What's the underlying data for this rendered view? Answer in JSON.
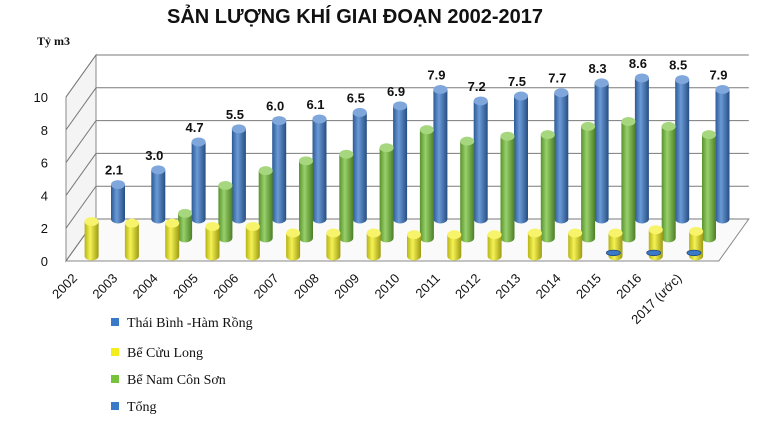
{
  "chart_data": {
    "type": "bar",
    "title": "SẢN LƯỢNG KHÍ GIAI ĐOẠN 2002-2017",
    "ylabel": "Tỷ m3",
    "xlabel": "",
    "ylim": [
      0,
      10
    ],
    "yticks": [
      "0",
      "2",
      "4",
      "6",
      "8",
      "10"
    ],
    "categories": [
      "2002",
      "2003",
      "2004",
      "2005",
      "2006",
      "2007",
      "2008",
      "2009",
      "2010",
      "2011",
      "2012",
      "2013",
      "2014",
      "2015",
      "2016",
      "2017 (ước)"
    ],
    "series": [
      {
        "name": "Thái Bình -Hàm Rồng",
        "color": "#3a78c8",
        "values": [
          0,
          0,
          0,
          0,
          0,
          0,
          0,
          0,
          0,
          0,
          0,
          0,
          0,
          0.05,
          0.08,
          0.09
        ]
      },
      {
        "name": "Bể Cửu Long",
        "color": "#f2ee1c",
        "values": [
          2.1,
          2.0,
          2.0,
          1.8,
          1.8,
          1.4,
          1.4,
          1.4,
          1.3,
          1.3,
          1.3,
          1.4,
          1.4,
          1.4,
          1.6,
          1.5
        ]
      },
      {
        "name": "Bể Nam Côn Sơn",
        "color": "#76c23a",
        "values": [
          0,
          0,
          1.5,
          3.2,
          4.1,
          4.7,
          5.1,
          5.5,
          6.6,
          5.9,
          6.2,
          6.3,
          6.8,
          7.1,
          6.8,
          6.3
        ]
      },
      {
        "name": "Tổng",
        "color": "#3a78c8",
        "values": [
          2.1,
          3.0,
          4.7,
          5.5,
          6.0,
          6.1,
          6.5,
          6.9,
          7.9,
          7.2,
          7.5,
          7.7,
          8.3,
          8.6,
          8.5,
          7.9
        ]
      }
    ],
    "data_labels": [
      "2.1",
      "3.0",
      "4.7",
      "5.5",
      "6.0",
      "6.1",
      "6.5",
      "6.9",
      "7.9",
      "7.2",
      "7.5",
      "7.7",
      "8.3",
      "8.6",
      "8.5",
      "7.9"
    ],
    "legend_position": "bottom-left"
  }
}
